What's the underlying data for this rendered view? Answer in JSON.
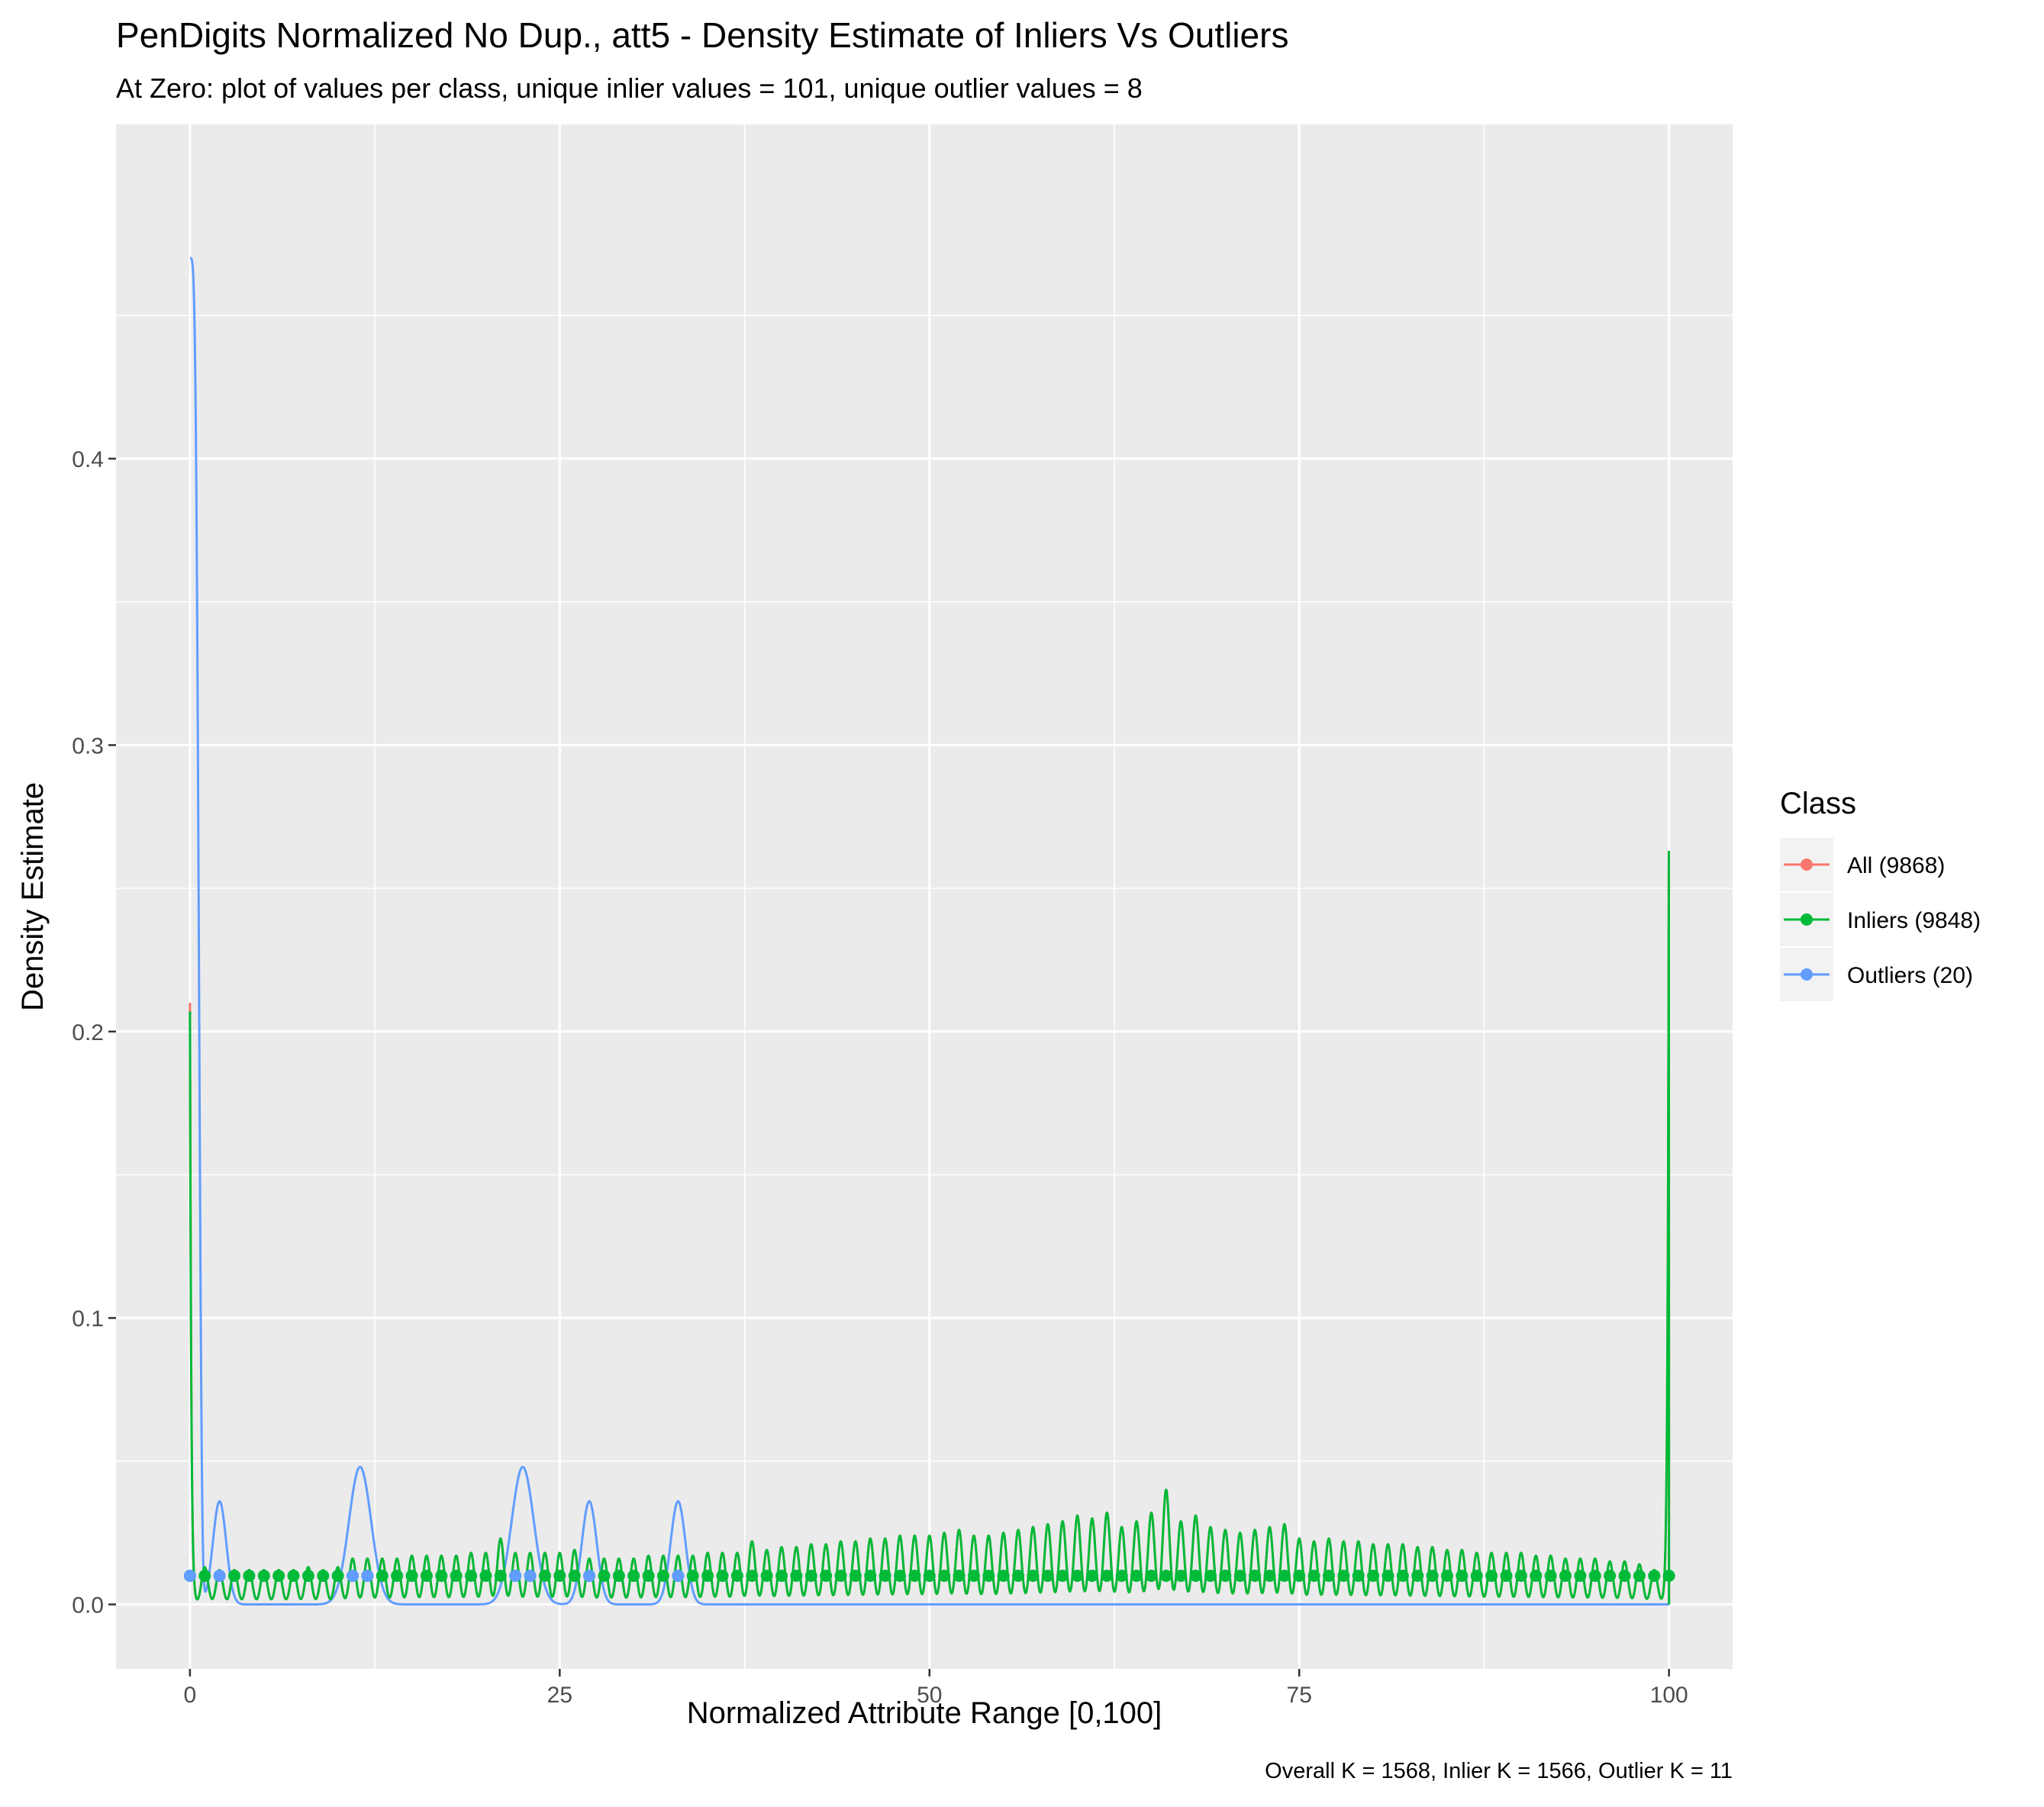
{
  "chart_data": {
    "type": "line",
    "title": "PenDigits Normalized No Dup., att5 - Density Estimate of Inliers Vs Outliers",
    "subtitle": "At Zero: plot of values per class, unique inlier values = 101, unique outlier values = 8",
    "xlabel": "Normalized Attribute Range [0,100]",
    "ylabel": "Density Estimate",
    "caption": "Overall K = 1568, Inlier K = 1566, Outlier K = 11",
    "xlim": [
      -5,
      104.3
    ],
    "ylim": [
      -0.0225,
      0.5167
    ],
    "x_ticks": [
      0,
      25,
      50,
      75,
      100
    ],
    "x_tick_labels": [
      "0",
      "25",
      "50",
      "75",
      "100"
    ],
    "y_ticks": [
      0.0,
      0.1,
      0.2,
      0.3,
      0.4
    ],
    "y_tick_labels": [
      "0.0",
      "0.1",
      "0.2",
      "0.3",
      "0.4"
    ],
    "grid": true,
    "legend": {
      "title": "Class",
      "position": "right",
      "entries": [
        "All (9868)",
        "Inliers (9848)",
        "Outliers (20)"
      ]
    },
    "colors": {
      "all": "#F8766D",
      "inliers": "#00BA38",
      "outliers": "#619CFF",
      "panel": "#EBEBEB",
      "grid": "#FFFFFF"
    },
    "series": [
      {
        "name": "All (9868)",
        "key": "all",
        "description": "nearly identical to Inliers curve",
        "edge_peaks": [
          [
            0,
            0.21
          ],
          [
            100,
            0.294
          ]
        ]
      },
      {
        "name": "Inliers (9848)",
        "key": "inliers",
        "peak_spacing": 1,
        "edge_peaks": [
          [
            0,
            0.207
          ],
          [
            100,
            0.294
          ]
        ],
        "interior_peaks": [
          [
            1,
            0.013
          ],
          [
            2,
            0.012
          ],
          [
            3,
            0.012
          ],
          [
            4,
            0.012
          ],
          [
            5,
            0.012
          ],
          [
            6,
            0.012
          ],
          [
            7,
            0.012
          ],
          [
            8,
            0.013
          ],
          [
            9,
            0.012
          ],
          [
            10,
            0.013
          ],
          [
            11,
            0.016
          ],
          [
            12,
            0.016
          ],
          [
            13,
            0.016
          ],
          [
            14,
            0.016
          ],
          [
            15,
            0.017
          ],
          [
            16,
            0.017
          ],
          [
            17,
            0.017
          ],
          [
            18,
            0.017
          ],
          [
            19,
            0.018
          ],
          [
            20,
            0.018
          ],
          [
            21,
            0.023
          ],
          [
            22,
            0.018
          ],
          [
            23,
            0.018
          ],
          [
            24,
            0.018
          ],
          [
            25,
            0.018
          ],
          [
            26,
            0.019
          ],
          [
            27,
            0.016
          ],
          [
            28,
            0.016
          ],
          [
            29,
            0.016
          ],
          [
            30,
            0.016
          ],
          [
            31,
            0.017
          ],
          [
            32,
            0.017
          ],
          [
            33,
            0.017
          ],
          [
            34,
            0.017
          ],
          [
            35,
            0.018
          ],
          [
            36,
            0.018
          ],
          [
            37,
            0.018
          ],
          [
            38,
            0.022
          ],
          [
            39,
            0.019
          ],
          [
            40,
            0.02
          ],
          [
            41,
            0.02
          ],
          [
            42,
            0.021
          ],
          [
            43,
            0.021
          ],
          [
            44,
            0.022
          ],
          [
            45,
            0.022
          ],
          [
            46,
            0.023
          ],
          [
            47,
            0.023
          ],
          [
            48,
            0.024
          ],
          [
            49,
            0.024
          ],
          [
            50,
            0.024
          ],
          [
            51,
            0.025
          ],
          [
            52,
            0.026
          ],
          [
            53,
            0.024
          ],
          [
            54,
            0.024
          ],
          [
            55,
            0.025
          ],
          [
            56,
            0.026
          ],
          [
            57,
            0.027
          ],
          [
            58,
            0.028
          ],
          [
            59,
            0.029
          ],
          [
            60,
            0.031
          ],
          [
            61,
            0.03
          ],
          [
            62,
            0.032
          ],
          [
            63,
            0.027
          ],
          [
            64,
            0.029
          ],
          [
            65,
            0.032
          ],
          [
            66,
            0.04
          ],
          [
            67,
            0.029
          ],
          [
            68,
            0.031
          ],
          [
            69,
            0.027
          ],
          [
            70,
            0.026
          ],
          [
            71,
            0.025
          ],
          [
            72,
            0.026
          ],
          [
            73,
            0.027
          ],
          [
            74,
            0.028
          ],
          [
            75,
            0.023
          ],
          [
            76,
            0.022
          ],
          [
            77,
            0.023
          ],
          [
            78,
            0.022
          ],
          [
            79,
            0.022
          ],
          [
            80,
            0.021
          ],
          [
            81,
            0.021
          ],
          [
            82,
            0.021
          ],
          [
            83,
            0.02
          ],
          [
            84,
            0.02
          ],
          [
            85,
            0.019
          ],
          [
            86,
            0.019
          ],
          [
            87,
            0.018
          ],
          [
            88,
            0.018
          ],
          [
            89,
            0.018
          ],
          [
            90,
            0.018
          ],
          [
            91,
            0.017
          ],
          [
            92,
            0.017
          ],
          [
            93,
            0.016
          ],
          [
            94,
            0.016
          ],
          [
            95,
            0.016
          ],
          [
            96,
            0.015
          ],
          [
            97,
            0.015
          ],
          [
            98,
            0.014
          ],
          [
            99,
            0.012
          ]
        ]
      },
      {
        "name": "Outliers (20)",
        "key": "outliers",
        "peaks": [
          [
            0,
            0.47
          ],
          [
            2,
            0.036
          ],
          [
            11.5,
            0.048
          ],
          [
            22.5,
            0.048
          ],
          [
            27,
            0.036
          ],
          [
            33,
            0.036
          ]
        ],
        "x_range": [
          0,
          100
        ]
      }
    ],
    "point_markers": {
      "y": 0.01,
      "inlier_x_values": [
        0,
        1,
        2,
        3,
        4,
        5,
        6,
        7,
        8,
        9,
        10,
        11,
        12,
        13,
        14,
        15,
        16,
        17,
        18,
        19,
        20,
        21,
        22,
        23,
        24,
        25,
        26,
        27,
        28,
        29,
        30,
        31,
        32,
        33,
        34,
        35,
        36,
        37,
        38,
        39,
        40,
        41,
        42,
        43,
        44,
        45,
        46,
        47,
        48,
        49,
        50,
        51,
        52,
        53,
        54,
        55,
        56,
        57,
        58,
        59,
        60,
        61,
        62,
        63,
        64,
        65,
        66,
        67,
        68,
        69,
        70,
        71,
        72,
        73,
        74,
        75,
        76,
        77,
        78,
        79,
        80,
        81,
        82,
        83,
        84,
        85,
        86,
        87,
        88,
        89,
        90,
        91,
        92,
        93,
        94,
        95,
        96,
        97,
        98,
        99,
        100
      ],
      "outlier_x_values": [
        0,
        2,
        11,
        12,
        22,
        23,
        27,
        33
      ]
    }
  }
}
